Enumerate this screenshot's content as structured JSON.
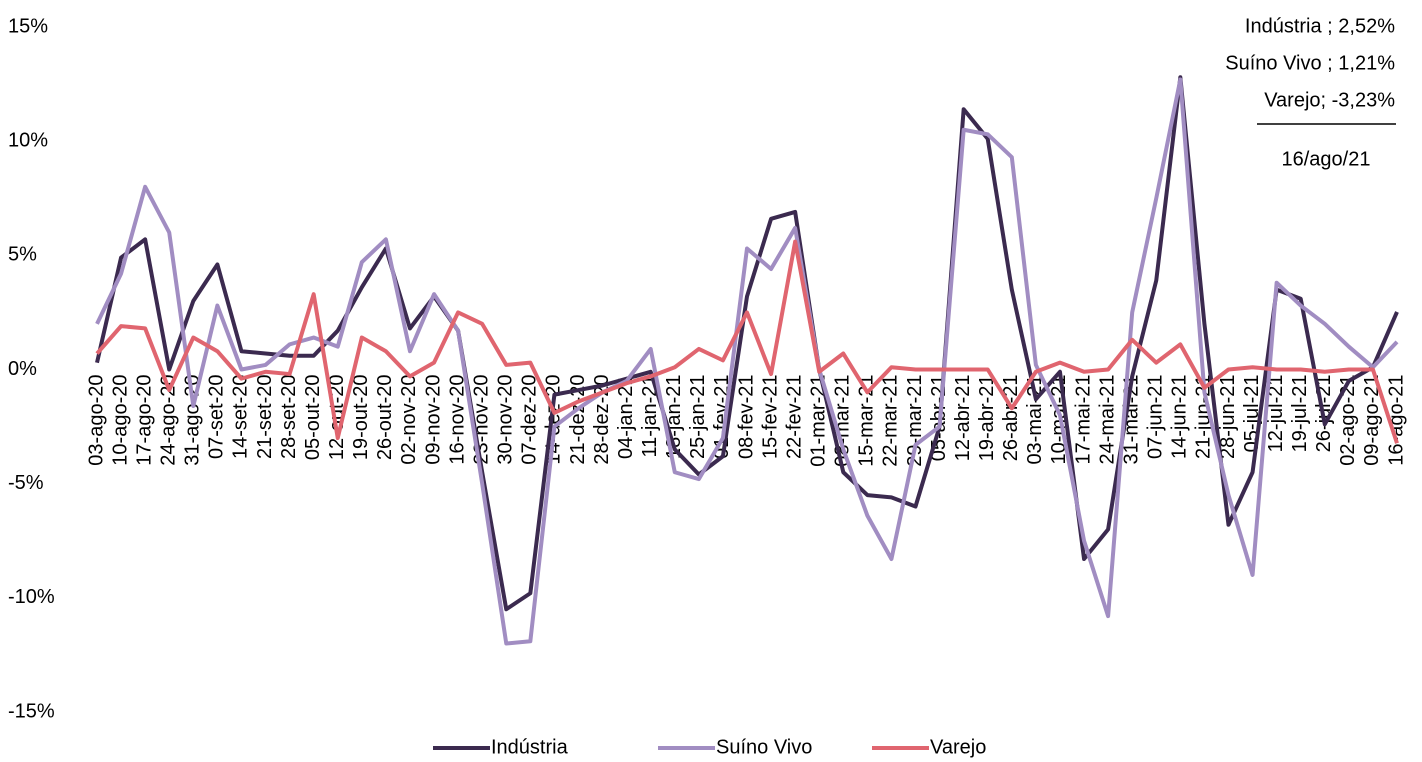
{
  "chart_data": {
    "type": "line",
    "categories": [
      "03-ago-20",
      "10-ago-20",
      "17-ago-20",
      "24-ago-20",
      "31-ago-20",
      "07-set-20",
      "14-set-20",
      "21-set-20",
      "28-set-20",
      "05-out-20",
      "12-out-20",
      "19-out-20",
      "26-out-20",
      "02-nov-20",
      "09-nov-20",
      "16-nov-20",
      "23-nov-20",
      "30-nov-20",
      "07-dez-20",
      "14-dez-20",
      "21-dez-20",
      "28-dez-20",
      "04-jan-21",
      "11-jan-21",
      "18-jan-21",
      "25-jan-21",
      "01-fev-21",
      "08-fev-21",
      "15-fev-21",
      "22-fev-21",
      "01-mar-21",
      "08-mar-21",
      "15-mar-21",
      "22-mar-21",
      "29-mar-21",
      "05-abr-21",
      "12-abr-21",
      "19-abr-21",
      "26-abr-21",
      "03-mai-21",
      "10-mai-21",
      "17-mai-21",
      "24-mai-21",
      "31-mai-21",
      "07-jun-21",
      "14-jun-21",
      "21-jun-21",
      "28-jun-21",
      "05-jul-21",
      "12-jul-21",
      "19-jul-21",
      "26-jul-21",
      "02-ago-21",
      "09-ago-21",
      "16-ago-21"
    ],
    "series": [
      {
        "name": "Indústria",
        "color": "#3b2a4f",
        "values": [
          0.3,
          4.9,
          5.7,
          0,
          3.0,
          4.6,
          0.8,
          0.7,
          0.6,
          0.6,
          1.7,
          3.6,
          5.3,
          1.8,
          3.2,
          1.7,
          -4.5,
          -10.5,
          -9.8,
          -1.1,
          -0.9,
          -0.7,
          -0.4,
          -0.1,
          -3.5,
          -4.6,
          -3.8,
          3.2,
          6.6,
          6.9,
          0,
          -4.5,
          -5.5,
          -5.6,
          -6.0,
          -2.5,
          11.4,
          10.1,
          3.5,
          -1.3,
          -0.1,
          -8.3,
          -7.0,
          -0.3,
          3.9,
          12.8,
          2.0,
          -6.8,
          -4.5,
          3.5,
          3.1,
          -2.4,
          -0.5,
          0.1,
          2.52
        ]
      },
      {
        "name": "Suíno Vivo",
        "color": "#a18dc2",
        "values": [
          2.0,
          4.2,
          8.0,
          6.0,
          -1.6,
          2.8,
          0,
          0.2,
          1.1,
          1.4,
          1.0,
          4.7,
          5.7,
          0.8,
          3.3,
          1.7,
          -5.0,
          -12.0,
          -11.9,
          -2.5,
          -1.7,
          -1.0,
          -0.5,
          0.9,
          -4.5,
          -4.8,
          -3.0,
          5.3,
          4.4,
          6.2,
          0,
          -3.5,
          -6.4,
          -8.3,
          -3.3,
          -2.5,
          10.5,
          10.3,
          9.3,
          0.2,
          -2.0,
          -7.5,
          -10.8,
          2.5,
          7.5,
          12.7,
          -1.0,
          -5.5,
          -9.0,
          3.8,
          2.8,
          2.0,
          1.0,
          0.1,
          1.21
        ]
      },
      {
        "name": "Varejo",
        "color": "#e0656f",
        "values": [
          0.7,
          1.9,
          1.8,
          -0.9,
          1.4,
          0.8,
          -0.4,
          -0.1,
          -0.2,
          3.3,
          -3.0,
          1.4,
          0.8,
          -0.3,
          0.3,
          2.5,
          2.0,
          0.2,
          0.3,
          -1.9,
          -1.4,
          -1.0,
          -0.6,
          -0.3,
          0.1,
          0.9,
          0.4,
          2.5,
          -0.2,
          5.6,
          -0.1,
          0.7,
          -1.0,
          0.1,
          0,
          0,
          0,
          0,
          -1.7,
          -0.1,
          0.3,
          -0.1,
          0,
          1.3,
          0.3,
          1.1,
          -0.8,
          0,
          0.1,
          0,
          0,
          -0.1,
          0,
          0,
          -3.23
        ]
      }
    ],
    "ylim": [
      -15,
      15
    ],
    "yticks": [
      {
        "value": -15,
        "label": "-15%"
      },
      {
        "value": -10,
        "label": "-10%"
      },
      {
        "value": -5,
        "label": "-5%"
      },
      {
        "value": 0,
        "label": "0%"
      },
      {
        "value": 5,
        "label": "5%"
      },
      {
        "value": 10,
        "label": "10%"
      },
      {
        "value": 15,
        "label": "15%"
      }
    ],
    "grid": false,
    "legend": "bottom",
    "annotations": [
      "Indústria ; 2,52%",
      "Suíno Vivo ; 1,21%",
      "Varejo; -3,23%",
      "16/ago/21"
    ]
  }
}
